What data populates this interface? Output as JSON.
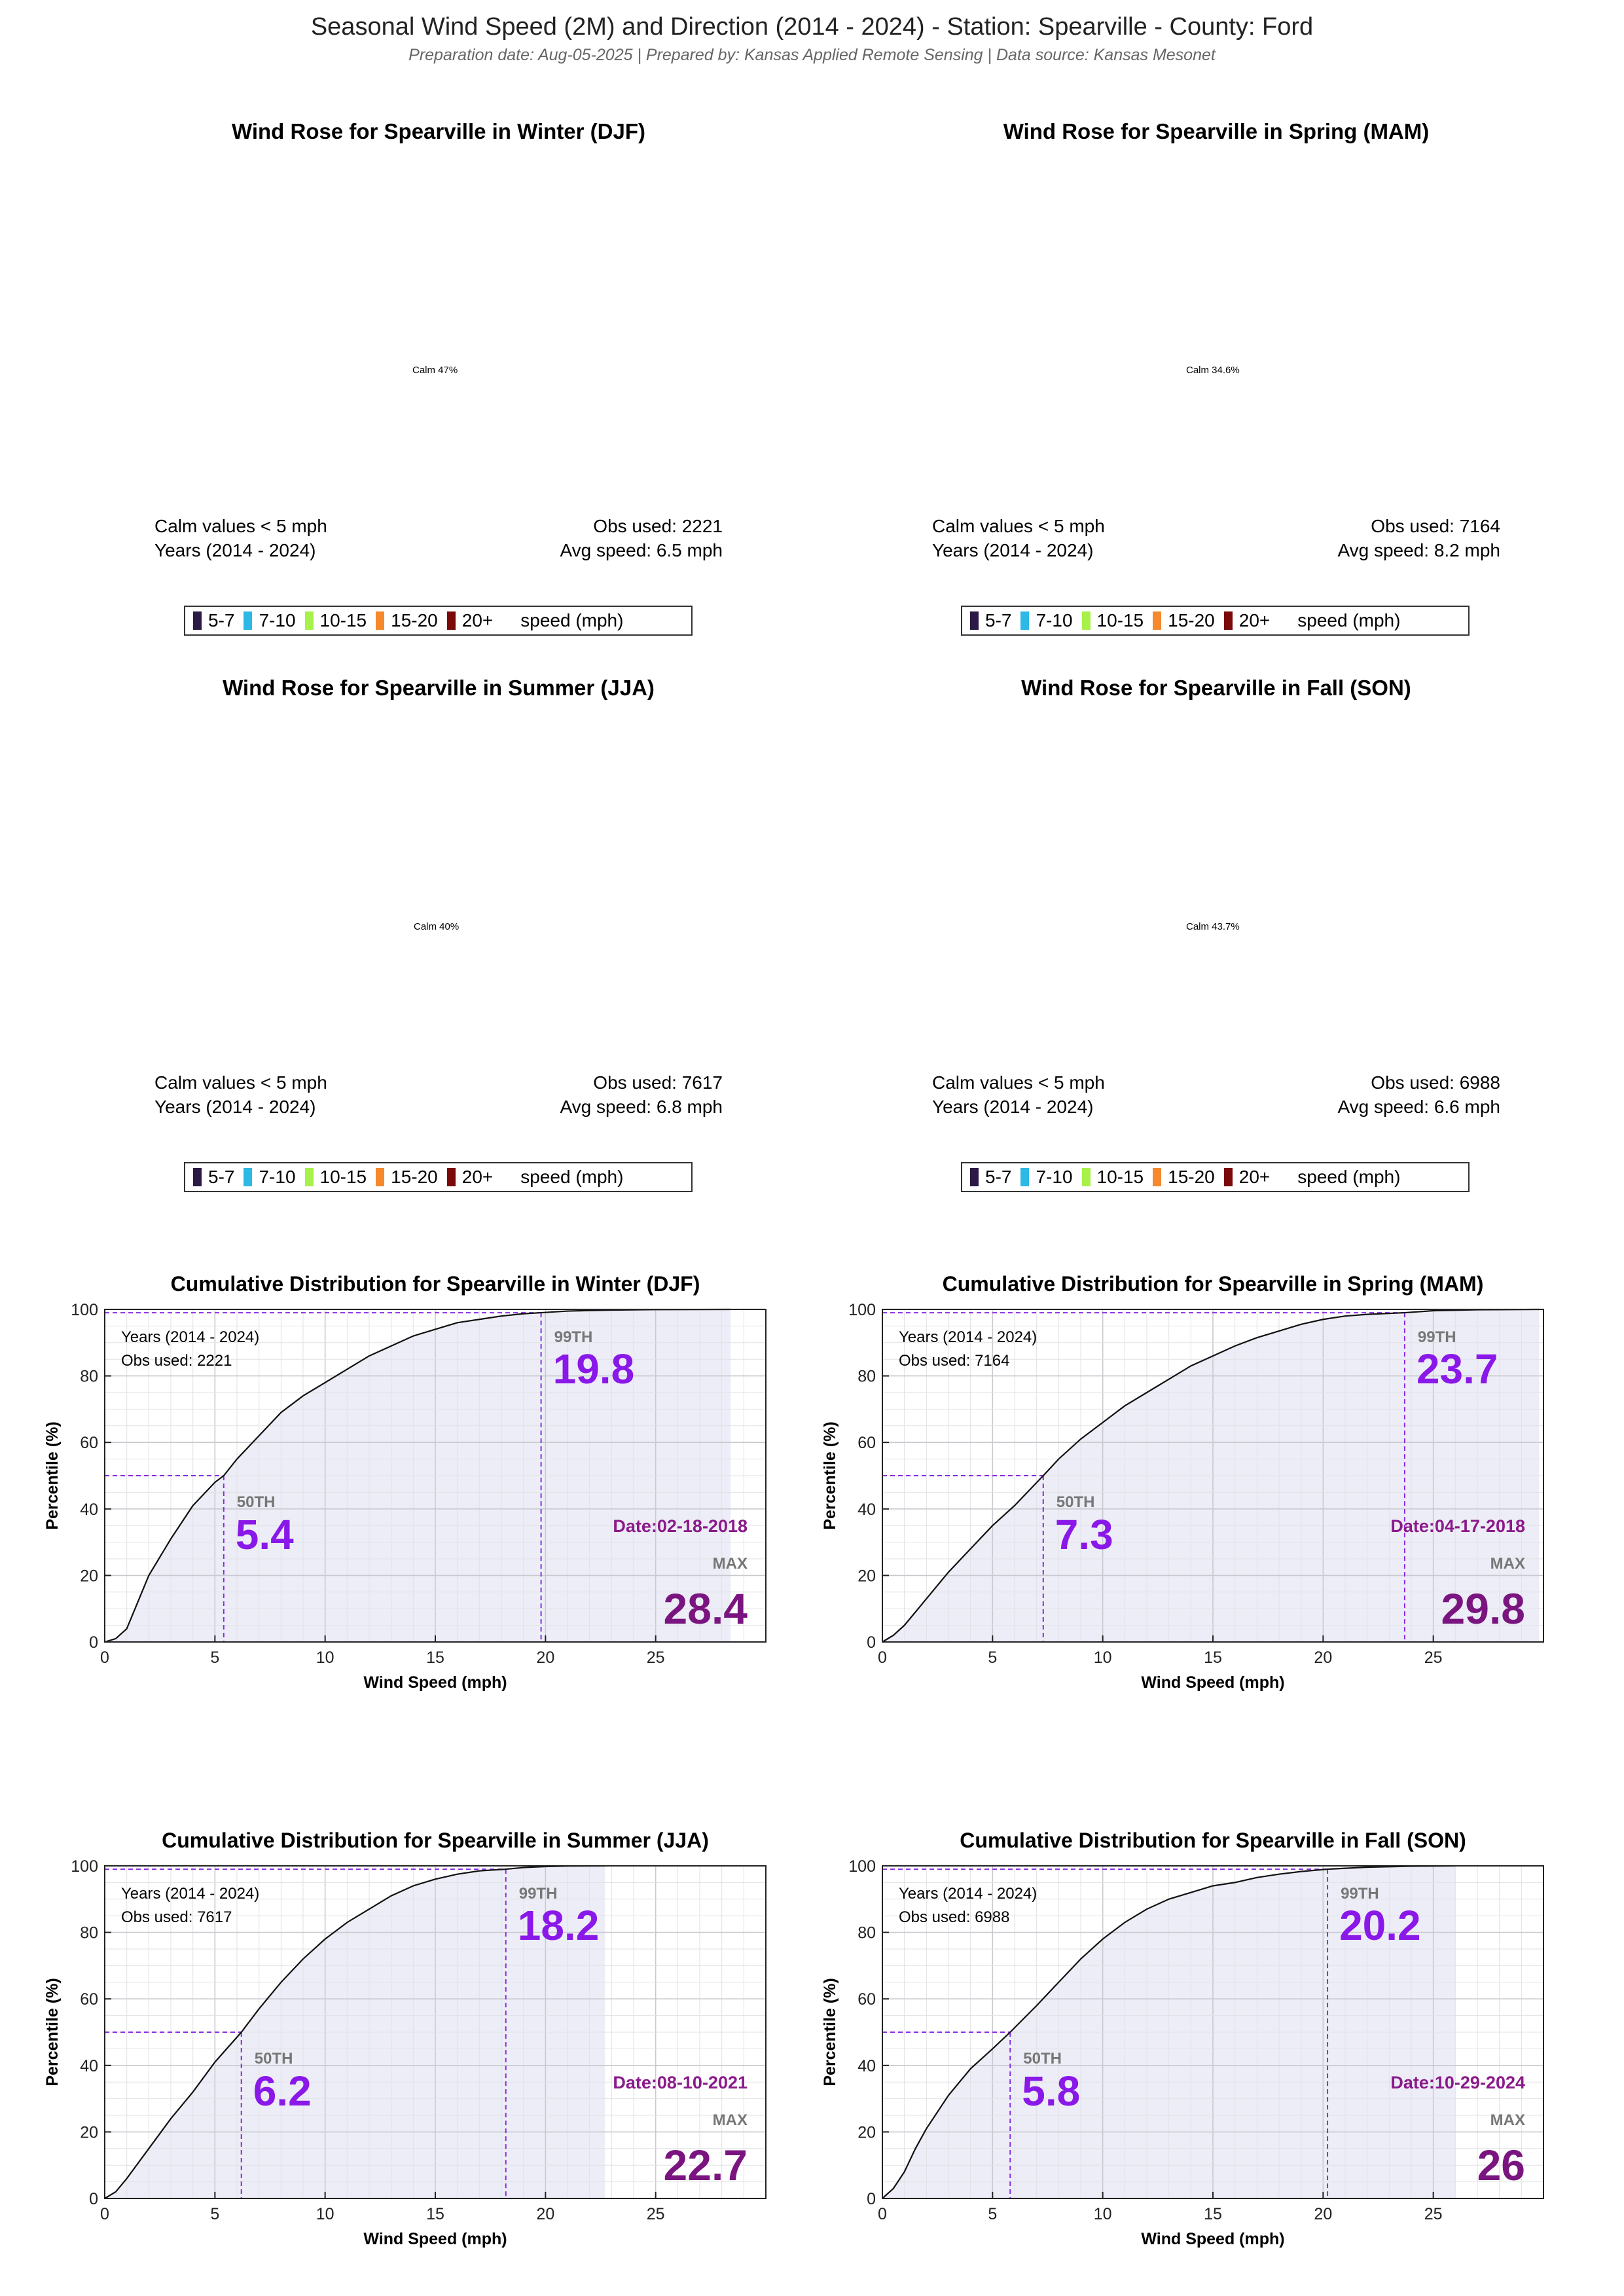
{
  "header": {
    "title": "Seasonal Wind Speed (2M) and Direction (2014 - 2024) - Station: Spearville - County: Ford",
    "subtitle": "Preparation date: Aug-05-2025 | Prepared by: Kansas Applied Remote Sensing | Data source: Kansas Mesonet"
  },
  "legend": {
    "items": [
      {
        "label": "5-7",
        "color": "#2a1a45"
      },
      {
        "label": "7-10",
        "color": "#2eb8e6"
      },
      {
        "label": "10-15",
        "color": "#a8f04a"
      },
      {
        "label": "15-20",
        "color": "#f5892b"
      },
      {
        "label": "20+",
        "color": "#7a0a0a"
      }
    ],
    "unit": "speed (mph)"
  },
  "wind_roses": [
    {
      "title": "Wind Rose for Spearville in Winter (DJF)",
      "calm": "Calm 47%",
      "calm_note": "Calm values < 5 mph",
      "years": "Years (2014 - 2024)",
      "obs": "Obs used: 2221",
      "avg": "Avg speed: 6.5 mph"
    },
    {
      "title": "Wind Rose for Spearville in Spring (MAM)",
      "calm": "Calm 34.6%",
      "calm_note": "Calm values < 5 mph",
      "years": "Years (2014 - 2024)",
      "obs": "Obs used: 7164",
      "avg": "Avg speed: 8.2 mph"
    },
    {
      "title": "Wind Rose for Spearville in Summer (JJA)",
      "calm": "Calm 40%",
      "calm_note": "Calm values < 5 mph",
      "years": "Years (2014 - 2024)",
      "obs": "Obs used: 7617",
      "avg": "Avg speed: 6.8 mph"
    },
    {
      "title": "Wind Rose for Spearville in Fall (SON)",
      "calm": "Calm 43.7%",
      "calm_note": "Calm values < 5 mph",
      "years": "Years (2014 - 2024)",
      "obs": "Obs used: 6988",
      "avg": "Avg speed: 6.6 mph"
    }
  ],
  "chart_data": [
    {
      "type": "line",
      "title": "Cumulative Distribution for Spearville in Winter (DJF)",
      "xlabel": "Wind Speed (mph)",
      "ylabel": "Percentile (%)",
      "xlim": [
        0,
        30
      ],
      "ylim": [
        0,
        100
      ],
      "xticks": [
        0,
        5,
        10,
        15,
        20,
        25
      ],
      "yticks": [
        0,
        20,
        40,
        60,
        80,
        100
      ],
      "grid": true,
      "years_label": "Years (2014 - 2024)",
      "obs_label": "Obs used: 2221",
      "p50": 5.4,
      "p50_label": "50TH",
      "p50_text": "5.4",
      "p99": 19.8,
      "p99_label": "99TH",
      "p99_text": "19.8",
      "max": 28.4,
      "max_label": "MAX",
      "max_text": "28.4",
      "max_date": "Date:02-18-2018",
      "x": [
        0,
        0.5,
        1,
        1.5,
        2,
        3,
        4,
        5,
        5.4,
        6,
        7,
        8,
        9,
        10,
        11,
        12,
        13,
        14,
        15,
        16,
        17,
        18,
        19,
        19.8,
        21,
        23,
        25,
        28.4
      ],
      "y": [
        0,
        1,
        4,
        12,
        20,
        31,
        41,
        48,
        50,
        55,
        62,
        69,
        74,
        78,
        82,
        86,
        89,
        92,
        94,
        96,
        97,
        98,
        98.7,
        99,
        99.5,
        99.8,
        99.95,
        100
      ]
    },
    {
      "type": "line",
      "title": "Cumulative Distribution for Spearville in Spring (MAM)",
      "xlabel": "Wind Speed (mph)",
      "ylabel": "Percentile (%)",
      "xlim": [
        0,
        30
      ],
      "ylim": [
        0,
        100
      ],
      "xticks": [
        0,
        5,
        10,
        15,
        20,
        25
      ],
      "yticks": [
        0,
        20,
        40,
        60,
        80,
        100
      ],
      "grid": true,
      "years_label": "Years (2014 - 2024)",
      "obs_label": "Obs used: 7164",
      "p50": 7.3,
      "p50_label": "50TH",
      "p50_text": "7.3",
      "p99": 23.7,
      "p99_label": "99TH",
      "p99_text": "23.7",
      "max": 29.8,
      "max_label": "MAX",
      "max_text": "29.8",
      "max_date": "Date:04-17-2018",
      "x": [
        0,
        0.5,
        1,
        2,
        3,
        4,
        5,
        6,
        7.3,
        8,
        9,
        10,
        11,
        12,
        13,
        14,
        15,
        16,
        17,
        18,
        19,
        20,
        21,
        22,
        23.7,
        25,
        27,
        29.8
      ],
      "y": [
        0,
        2,
        5,
        13,
        21,
        28,
        35,
        41,
        50,
        55,
        61,
        66,
        71,
        75,
        79,
        83,
        86,
        89,
        91.5,
        93.5,
        95.5,
        97,
        98,
        98.5,
        99,
        99.6,
        99.9,
        100
      ]
    },
    {
      "type": "line",
      "title": "Cumulative Distribution for Spearville in Summer (JJA)",
      "xlabel": "Wind Speed (mph)",
      "ylabel": "Percentile (%)",
      "xlim": [
        0,
        30
      ],
      "ylim": [
        0,
        100
      ],
      "xticks": [
        0,
        5,
        10,
        15,
        20,
        25
      ],
      "yticks": [
        0,
        20,
        40,
        60,
        80,
        100
      ],
      "grid": true,
      "years_label": "Years (2014 - 2024)",
      "obs_label": "Obs used: 7617",
      "p50": 6.2,
      "p50_label": "50TH",
      "p50_text": "6.2",
      "p99": 18.2,
      "p99_label": "99TH",
      "p99_text": "18.2",
      "max": 22.7,
      "max_label": "MAX",
      "max_text": "22.7",
      "max_date": "Date:08-10-2021",
      "x": [
        0,
        0.5,
        1,
        2,
        3,
        4,
        5,
        6.2,
        7,
        8,
        9,
        10,
        11,
        12,
        13,
        14,
        15,
        16,
        17,
        18.2,
        19,
        20,
        21,
        22.7
      ],
      "y": [
        0,
        2,
        6,
        15,
        24,
        32,
        41,
        50,
        57,
        65,
        72,
        78,
        83,
        87,
        91,
        94,
        96,
        97.5,
        98.5,
        99,
        99.5,
        99.8,
        99.95,
        100
      ]
    },
    {
      "type": "line",
      "title": "Cumulative Distribution for Spearville in Fall (SON)",
      "xlabel": "Wind Speed (mph)",
      "ylabel": "Percentile (%)",
      "xlim": [
        0,
        30
      ],
      "ylim": [
        0,
        100
      ],
      "xticks": [
        0,
        5,
        10,
        15,
        20,
        25
      ],
      "yticks": [
        0,
        20,
        40,
        60,
        80,
        100
      ],
      "grid": true,
      "years_label": "Years (2014 - 2024)",
      "obs_label": "Obs used: 6988",
      "p50": 5.8,
      "p50_label": "50TH",
      "p50_text": "5.8",
      "p99": 20.2,
      "p99_label": "99TH",
      "p99_text": "20.2",
      "max": 26,
      "max_label": "MAX",
      "max_text": "26",
      "max_date": "Date:10-29-2024",
      "x": [
        0,
        0.5,
        1,
        1.5,
        2,
        3,
        4,
        5,
        5.8,
        7,
        8,
        9,
        10,
        11,
        12,
        13,
        14,
        15,
        16,
        17,
        18,
        19,
        20.2,
        22,
        24,
        26
      ],
      "y": [
        0,
        3,
        8,
        15,
        21,
        31,
        39,
        45,
        50,
        58,
        65,
        72,
        78,
        83,
        87,
        90,
        92,
        94,
        95,
        96.5,
        97.5,
        98.3,
        99,
        99.6,
        99.9,
        100
      ]
    }
  ]
}
